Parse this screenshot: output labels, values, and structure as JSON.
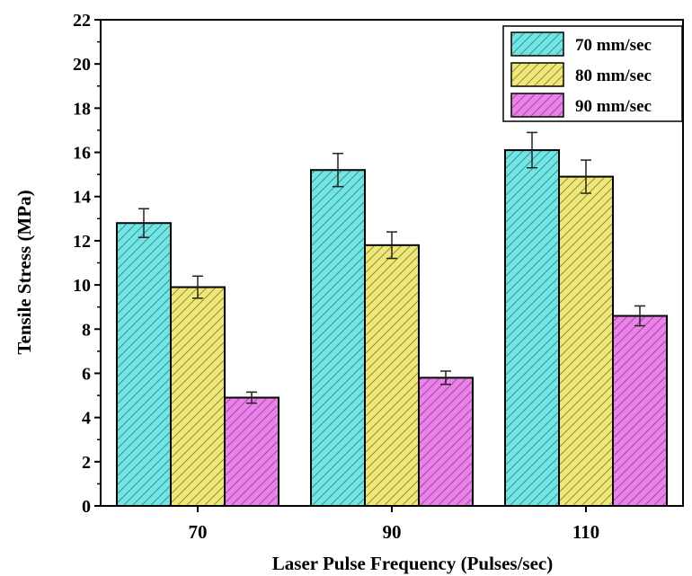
{
  "chart_data": {
    "type": "bar",
    "title": "",
    "xlabel": "Laser Pulse Frequency (Pulses/sec)",
    "ylabel": "Tensile Stress (MPa)",
    "categories": [
      "70",
      "90",
      "110"
    ],
    "ylim": [
      0,
      22
    ],
    "yticks": [
      0,
      2,
      4,
      6,
      8,
      10,
      12,
      14,
      16,
      18,
      20,
      22
    ],
    "grid": false,
    "legend_position": "top-right",
    "series": [
      {
        "name": "70 mm/sec",
        "color": "#6ee6e6",
        "values": [
          12.8,
          15.2,
          16.1
        ],
        "errors": [
          0.65,
          0.75,
          0.8
        ]
      },
      {
        "name": "80 mm/sec",
        "color": "#efe874",
        "values": [
          9.9,
          11.8,
          14.9
        ],
        "errors": [
          0.5,
          0.6,
          0.75
        ]
      },
      {
        "name": "90 mm/sec",
        "color": "#ee80ee",
        "values": [
          4.9,
          5.8,
          8.6
        ],
        "errors": [
          0.25,
          0.3,
          0.45
        ]
      }
    ]
  }
}
